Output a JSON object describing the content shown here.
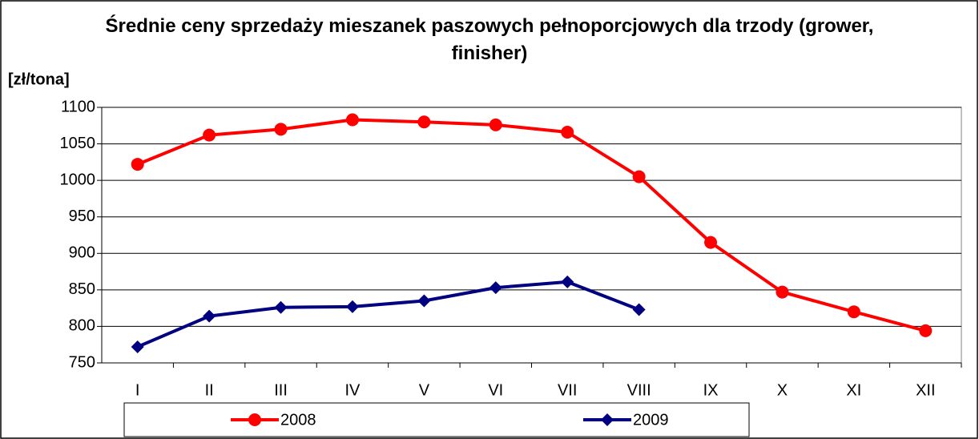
{
  "chart_data": {
    "type": "line",
    "title": "Średnie ceny sprzedaży mieszanek paszowych pełnoporcjowych dla trzody (grower, finisher)",
    "y_label": "[zł/tona]",
    "categories": [
      "I",
      "II",
      "III",
      "IV",
      "V",
      "VI",
      "VII",
      "VIII",
      "IX",
      "X",
      "XI",
      "XII"
    ],
    "series": [
      {
        "name": "2008",
        "color": "#ff0000",
        "marker": "circle",
        "values": [
          1022,
          1062,
          1070,
          1083,
          1080,
          1076,
          1066,
          1005,
          915,
          847,
          820,
          794
        ]
      },
      {
        "name": "2009",
        "color": "#000080",
        "marker": "diamond",
        "values": [
          772,
          814,
          826,
          827,
          835,
          853,
          861,
          823,
          null,
          null,
          null,
          null
        ]
      }
    ],
    "ylim": [
      750,
      1100
    ],
    "yticks": [
      750,
      800,
      850,
      900,
      950,
      1000,
      1050,
      1100
    ],
    "grid": true,
    "legend": "bottom"
  }
}
